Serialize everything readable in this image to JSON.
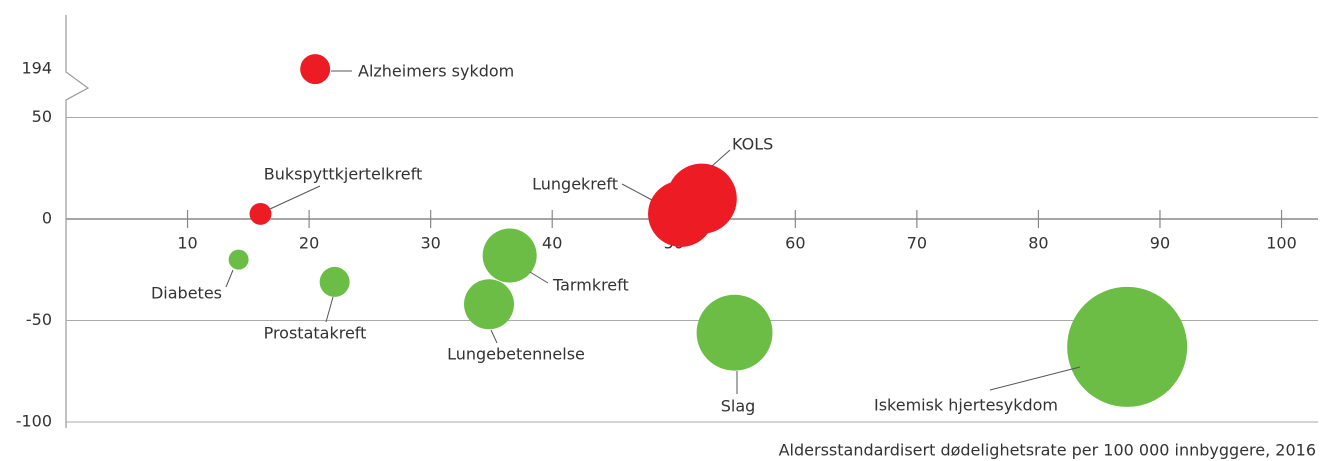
{
  "chart_data": {
    "type": "bubble",
    "x_label": "Aldersstandardisert dødelighetsrate per 100 000 innbyggere, 2016",
    "xlim": [
      0,
      103
    ],
    "xticks": [
      10,
      20,
      30,
      40,
      50,
      60,
      70,
      80,
      90,
      100
    ],
    "ylim": [
      -100,
      220
    ],
    "ybreak": [
      50,
      180
    ],
    "yticks": [
      -100,
      -50,
      0,
      50,
      194
    ],
    "points": [
      {
        "label": "Alzheimers sykdom",
        "x": 20.5,
        "y": 194,
        "size": 2.25,
        "color": "#ed1c24"
      },
      {
        "label": "Bukspyttkjertelkreft",
        "x": 16,
        "y": 2.5,
        "size": 1.2,
        "color": "#ed1c24"
      },
      {
        "label": "KOLS",
        "x": 52.3,
        "y": 10,
        "size": 12.3,
        "color": "#ed1c24"
      },
      {
        "label": "Lungekreft",
        "x": 50.6,
        "y": 2.5,
        "size": 10.9,
        "color": "#ed1c24"
      },
      {
        "label": "Diabetes",
        "x": 14.2,
        "y": -20,
        "size": 1,
        "color": "#6bbd45"
      },
      {
        "label": "Prostatakreft",
        "x": 22.1,
        "y": -31,
        "size": 2.25,
        "color": "#6bbd45"
      },
      {
        "label": "Tarmkreft",
        "x": 36.5,
        "y": -18,
        "size": 7.3,
        "color": "#6bbd45"
      },
      {
        "label": "Lungebetennelse",
        "x": 34.8,
        "y": -42,
        "size": 6.25,
        "color": "#6bbd45"
      },
      {
        "label": "Slag",
        "x": 55,
        "y": -56,
        "size": 14.4,
        "color": "#6bbd45"
      },
      {
        "label": "Iskemisk hjertesykdom",
        "x": 87.3,
        "y": -63,
        "size": 36,
        "color": "#6bbd45"
      }
    ]
  }
}
